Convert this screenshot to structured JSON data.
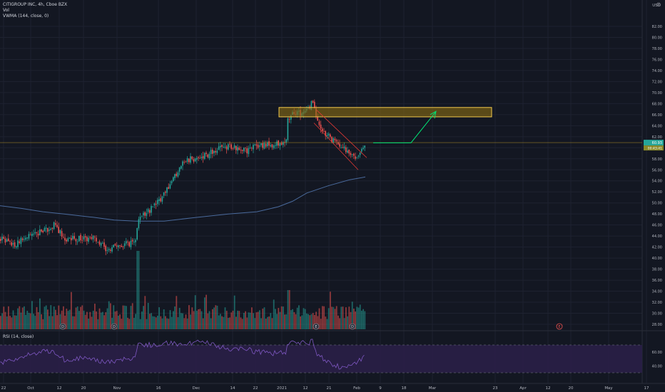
{
  "header": {
    "title": "CITIGROUP INC, 4h, Cboe BZX",
    "vol_label": "Vol",
    "vwma_label": "VWMA (144, close, 0)",
    "rsi_label": "RSI (14, close)"
  },
  "price_axis": {
    "currency": "USD",
    "ticks": [
      "82.00",
      "80.00",
      "78.00",
      "76.00",
      "74.00",
      "72.00",
      "70.00",
      "68.00",
      "66.00",
      "64.00",
      "62.00",
      "60.00",
      "58.00",
      "56.00",
      "54.00",
      "52.00",
      "50.00",
      "48.00",
      "46.00",
      "44.00",
      "42.00",
      "40.00",
      "38.00",
      "36.00",
      "34.00",
      "32.00",
      "30.00",
      "28.00"
    ],
    "last_price_label": "60.93",
    "last_price_sub": "00:43:41"
  },
  "rsi_axis": {
    "ticks": [
      "60.00",
      "40.00"
    ]
  },
  "time_axis": {
    "labels": [
      "22",
      "Oct",
      "12",
      "20",
      "Nov",
      "16",
      "Dec",
      "14",
      "22",
      "2021",
      "12",
      "21",
      "Feb",
      "9",
      "18",
      "Mar",
      "23",
      "Apr",
      "12",
      "20",
      "May",
      "17"
    ]
  },
  "event_markers": [
    "D",
    "D",
    "E",
    "D",
    "E"
  ],
  "colors": {
    "background": "#131722",
    "up": "#26a69a",
    "down": "#ef5350",
    "vwma": "#4a6a9c",
    "rsi": "#7e57c2",
    "rsi_band": "#2a1f47",
    "zone_fill": "#8a6d12",
    "zone_border": "#f2c94c",
    "arrow": "#00e676",
    "channel": "#e53935",
    "price_line": "#c9a227"
  },
  "chart_data": {
    "type": "candlestick",
    "title": "CITIGROUP INC, 4h, Cboe BZX",
    "ylim": [
      27,
      83
    ],
    "price_anchors": [
      [
        0,
        43.5
      ],
      [
        20,
        42.5
      ],
      [
        45,
        44.5
      ],
      [
        60,
        44.8
      ],
      [
        75,
        46
      ],
      [
        90,
        43.5
      ],
      [
        130,
        43.5
      ],
      [
        150,
        41.5
      ],
      [
        170,
        42.5
      ],
      [
        190,
        43
      ],
      [
        192,
        46.8
      ],
      [
        210,
        48.8
      ],
      [
        230,
        51.5
      ],
      [
        255,
        57.5
      ],
      [
        285,
        58.5
      ],
      [
        315,
        60.2
      ],
      [
        345,
        59.5
      ],
      [
        360,
        60.3
      ],
      [
        380,
        60.5
      ],
      [
        400,
        60.8
      ],
      [
        403,
        65.5
      ],
      [
        415,
        66.2
      ],
      [
        430,
        66.5
      ],
      [
        438,
        68.5
      ],
      [
        442,
        66
      ],
      [
        450,
        63.5
      ],
      [
        460,
        62
      ],
      [
        470,
        61
      ],
      [
        480,
        60
      ],
      [
        492,
        59
      ],
      [
        500,
        58
      ],
      [
        507,
        59.8
      ],
      [
        512,
        61
      ]
    ],
    "vwma_points": [
      [
        0,
        49.5
      ],
      [
        30,
        49
      ],
      [
        60,
        48.4
      ],
      [
        90,
        48
      ],
      [
        130,
        47.4
      ],
      [
        160,
        46.9
      ],
      [
        190,
        46.7
      ],
      [
        230,
        46.7
      ],
      [
        270,
        47.3
      ],
      [
        320,
        48
      ],
      [
        360,
        48.4
      ],
      [
        390,
        49.3
      ],
      [
        410,
        50.3
      ],
      [
        430,
        51.8
      ],
      [
        460,
        53.1
      ],
      [
        490,
        54.2
      ],
      [
        512,
        54.7
      ]
    ],
    "rsi_anchors": [
      [
        0,
        45
      ],
      [
        20,
        50
      ],
      [
        45,
        58
      ],
      [
        60,
        60
      ],
      [
        75,
        62
      ],
      [
        90,
        49
      ],
      [
        120,
        52
      ],
      [
        150,
        45
      ],
      [
        170,
        48
      ],
      [
        190,
        50
      ],
      [
        192,
        70
      ],
      [
        210,
        70
      ],
      [
        230,
        72
      ],
      [
        255,
        72
      ],
      [
        285,
        75
      ],
      [
        315,
        65
      ],
      [
        345,
        64
      ],
      [
        360,
        60
      ],
      [
        380,
        58
      ],
      [
        400,
        58
      ],
      [
        403,
        72
      ],
      [
        415,
        73
      ],
      [
        430,
        73
      ],
      [
        438,
        75
      ],
      [
        442,
        60
      ],
      [
        450,
        52
      ],
      [
        460,
        45
      ],
      [
        470,
        40
      ],
      [
        480,
        38
      ],
      [
        492,
        40
      ],
      [
        500,
        42
      ],
      [
        507,
        52
      ],
      [
        512,
        55
      ]
    ],
    "rsi_levels": [
      70,
      30
    ],
    "demand_zone": [
      65.6,
      67.3
    ],
    "last_price": 60.93
  }
}
